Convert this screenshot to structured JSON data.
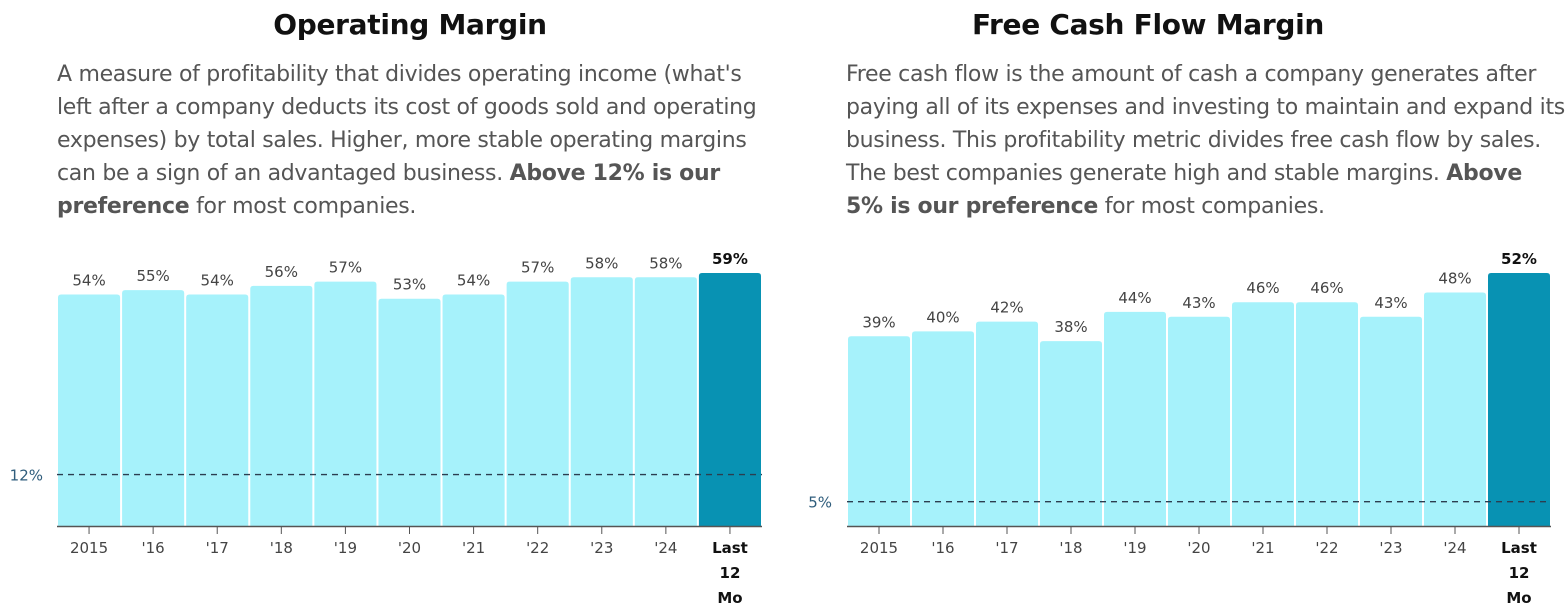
{
  "colors": {
    "bar": "#a6f2fb",
    "highlight": "#0892b3",
    "axis": "#555555",
    "ref_line": "#2c3e50"
  },
  "charts": [
    {
      "title": "Operating Margin",
      "description": "A measure of profitability that divides operating income (what's left after a company deducts its cost of goods sold and operating expenses) by total sales. Higher, more stable operating margins can be a sign of an advantaged business.",
      "preference_bold": "Above 12% is our preference",
      "preference_rest": " for most companies."
    },
    {
      "title": "Free Cash Flow Margin",
      "description": "Free cash flow is the amount of cash a company generates after paying all of its expenses and investing to maintain and expand its business. This profitability metric divides free cash flow by sales. The best companies generate high and stable margins.",
      "preference_bold": "Above 5% is our preference",
      "preference_rest": " for most companies."
    }
  ],
  "chart_data": [
    {
      "type": "bar",
      "title": "Operating Margin",
      "categories": [
        "2015",
        "'16",
        "'17",
        "'18",
        "'19",
        "'20",
        "'21",
        "'22",
        "'23",
        "'24",
        "Last 12 Mo"
      ],
      "values": [
        54,
        55,
        54,
        56,
        57,
        53,
        54,
        57,
        58,
        58,
        59
      ],
      "value_labels": [
        "54%",
        "55%",
        "54%",
        "56%",
        "57%",
        "53%",
        "54%",
        "57%",
        "58%",
        "58%",
        "59%"
      ],
      "highlight_index": 10,
      "reference": {
        "value": 12,
        "label": "12%"
      },
      "ylim": [
        0,
        59
      ]
    },
    {
      "type": "bar",
      "title": "Free Cash Flow Margin",
      "categories": [
        "2015",
        "'16",
        "'17",
        "'18",
        "'19",
        "'20",
        "'21",
        "'22",
        "'23",
        "'24",
        "Last 12 Mo"
      ],
      "values": [
        39,
        40,
        42,
        38,
        44,
        43,
        46,
        46,
        43,
        48,
        52
      ],
      "value_labels": [
        "39%",
        "40%",
        "42%",
        "38%",
        "44%",
        "43%",
        "46%",
        "46%",
        "43%",
        "48%",
        "52%"
      ],
      "highlight_index": 10,
      "reference": {
        "value": 5,
        "label": "5%"
      },
      "ylim": [
        0,
        52
      ]
    }
  ]
}
